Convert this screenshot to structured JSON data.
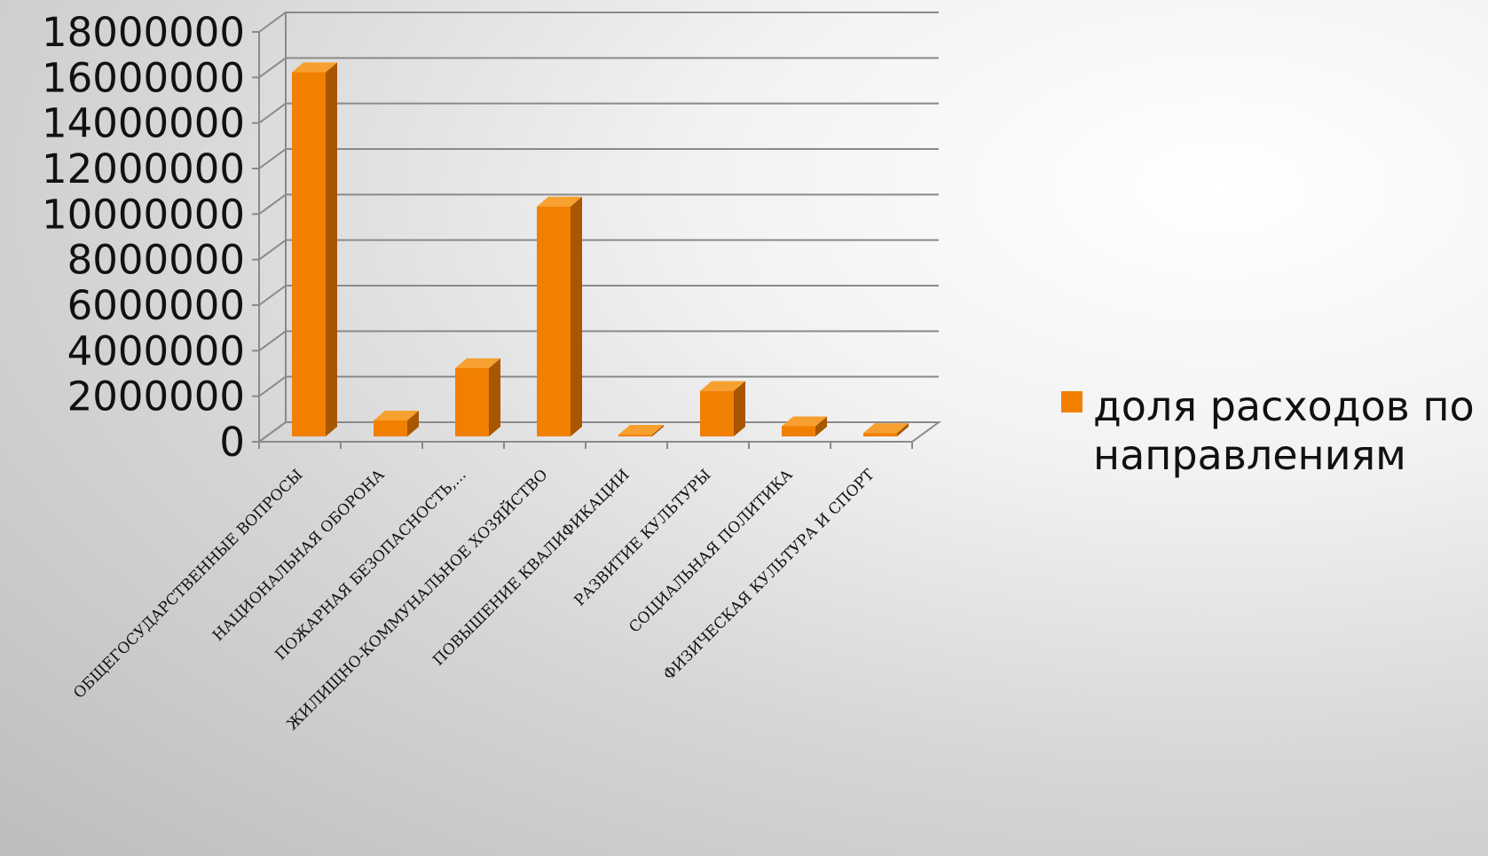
{
  "chart_data": {
    "type": "bar",
    "style": "3d-column",
    "categories": [
      "ОБЩЕГОСУДАРСТВЕННЫЕ ВОПРОСЫ",
      "НАЦИОНАЛЬНАЯ ОБОРОНА",
      "ПОЖАРНАЯ БЕЗОПАСНОСТЬ,...",
      "ЖИЛИЩНО-КОММУНАЛЬНОЕ ХОЗЯЙСТВО",
      "ПОВЫШЕНИЕ КВАЛИФИКАЦИИ",
      "РАЗВИТИЕ КУЛЬТУРЫ",
      "СОЦИАЛЬНАЯ ПОЛИТИКА",
      "ФИЗИЧЕСКАЯ КУЛЬТУРА И СПОРТ"
    ],
    "series": [
      {
        "name": "доля расходов по направлениям",
        "values": [
          16000000,
          700000,
          3000000,
          10100000,
          50000,
          2000000,
          450000,
          150000
        ],
        "color": "#f28000",
        "side_color": "#a85600",
        "top_color": "#f7a030"
      }
    ],
    "legend_lines": [
      "доля расходов по",
      "направлениям"
    ],
    "yticks": [
      "0",
      "2000000",
      "4000000",
      "6000000",
      "8000000",
      "10000000",
      "12000000",
      "14000000",
      "16000000",
      "18000000"
    ],
    "ylim": [
      0,
      18000000
    ],
    "grid": true,
    "legend_position": "right",
    "title": "",
    "xlabel": "",
    "ylabel": ""
  }
}
